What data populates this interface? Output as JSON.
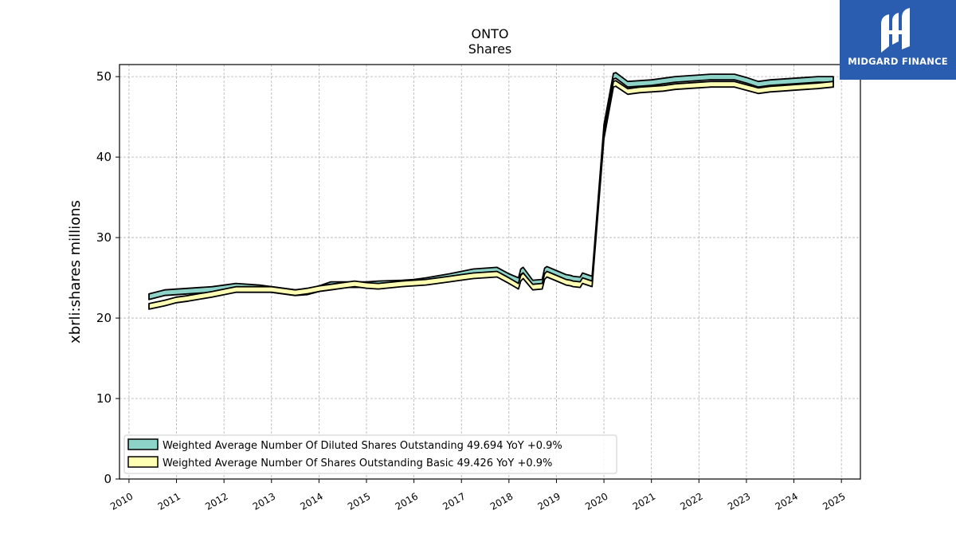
{
  "chart_data": {
    "type": "area",
    "title": "ONTO",
    "subtitle": "Shares",
    "ylabel": "xbrli:shares millions",
    "xlabel": "",
    "xlim": [
      2009.8,
      2025.4
    ],
    "ylim": [
      0,
      51.5
    ],
    "y_ticks": [
      0,
      10,
      20,
      30,
      40,
      50
    ],
    "x_ticks": [
      "2010",
      "2011",
      "2012",
      "2013",
      "2014",
      "2015",
      "2016",
      "2017",
      "2018",
      "2019",
      "2020",
      "2021",
      "2022",
      "2023",
      "2024",
      "2025"
    ],
    "grid": true,
    "legend_position": "lower-left",
    "series": [
      {
        "name": "Weighted Average Number Of Diluted Shares Outstanding  49.694 YoY +0.9%",
        "color": "#8dd3c7",
        "x": [
          2010.42,
          2010.75,
          2011.0,
          2011.25,
          2011.75,
          2012.0,
          2012.25,
          2012.75,
          2013.0,
          2013.5,
          2013.75,
          2014.0,
          2014.25,
          2014.5,
          2014.75,
          2015.0,
          2015.25,
          2015.75,
          2016.0,
          2016.25,
          2016.75,
          2017.0,
          2017.25,
          2017.75,
          2018.0,
          2018.2,
          2018.25,
          2018.3,
          2018.5,
          2018.7,
          2018.75,
          2018.8,
          2019.0,
          2019.2,
          2019.3,
          2019.35,
          2019.5,
          2019.55,
          2019.75,
          2020.0,
          2020.2,
          2020.25,
          2020.5,
          2020.75,
          2021.0,
          2021.25,
          2021.5,
          2021.75,
          2022.0,
          2022.25,
          2022.75,
          2023.0,
          2023.25,
          2023.5,
          2023.75,
          2024.0,
          2024.25,
          2024.5,
          2024.83
        ],
        "values": [
          23.0,
          23.5,
          23.6,
          23.7,
          23.9,
          24.1,
          24.3,
          24.1,
          23.9,
          23.5,
          23.6,
          24.0,
          24.5,
          24.5,
          24.5,
          24.5,
          24.6,
          24.7,
          24.8,
          25.0,
          25.5,
          25.8,
          26.1,
          26.3,
          25.5,
          25.0,
          26.1,
          26.3,
          24.7,
          24.8,
          26.2,
          26.4,
          25.9,
          25.4,
          25.3,
          25.2,
          25.1,
          25.6,
          25.2,
          44.0,
          50.4,
          50.5,
          49.4,
          49.5,
          49.6,
          49.8,
          50.0,
          50.1,
          50.2,
          50.3,
          50.3,
          49.9,
          49.4,
          49.6,
          49.7,
          49.8,
          49.9,
          50.0,
          50.0
        ]
      },
      {
        "name": "Weighted Average Number Of Shares Outstanding Basic  49.426 YoY +0.9%",
        "color": "#ffffb3",
        "x": [
          2010.42,
          2010.75,
          2011.0,
          2011.25,
          2011.75,
          2012.0,
          2012.25,
          2012.75,
          2013.0,
          2013.5,
          2013.75,
          2014.0,
          2014.25,
          2014.5,
          2014.75,
          2015.0,
          2015.25,
          2015.75,
          2016.0,
          2016.25,
          2016.75,
          2017.0,
          2017.25,
          2017.75,
          2018.0,
          2018.2,
          2018.25,
          2018.3,
          2018.5,
          2018.7,
          2018.75,
          2018.8,
          2019.0,
          2019.2,
          2019.3,
          2019.35,
          2019.5,
          2019.55,
          2019.75,
          2020.0,
          2020.2,
          2020.25,
          2020.5,
          2020.75,
          2021.0,
          2021.25,
          2021.5,
          2021.75,
          2022.0,
          2022.25,
          2022.75,
          2023.0,
          2023.25,
          2023.5,
          2023.75,
          2024.0,
          2024.25,
          2024.5,
          2024.83
        ],
        "values": [
          21.8,
          22.2,
          22.6,
          22.8,
          23.3,
          23.6,
          23.9,
          23.9,
          23.9,
          23.5,
          23.7,
          24.0,
          24.2,
          24.4,
          24.6,
          24.4,
          24.3,
          24.6,
          24.7,
          24.8,
          25.2,
          25.4,
          25.6,
          25.8,
          25.0,
          24.3,
          25.3,
          25.6,
          24.2,
          24.3,
          25.5,
          25.8,
          25.3,
          24.8,
          24.7,
          24.6,
          24.5,
          25.0,
          24.6,
          43.0,
          49.4,
          49.5,
          48.5,
          48.7,
          48.8,
          48.9,
          49.1,
          49.2,
          49.3,
          49.4,
          49.4,
          49.0,
          48.6,
          48.8,
          48.9,
          49.0,
          49.1,
          49.2,
          49.4
        ]
      }
    ]
  },
  "logo": {
    "text": "MIDGARD FINANCE",
    "background": "#2a5db0"
  }
}
